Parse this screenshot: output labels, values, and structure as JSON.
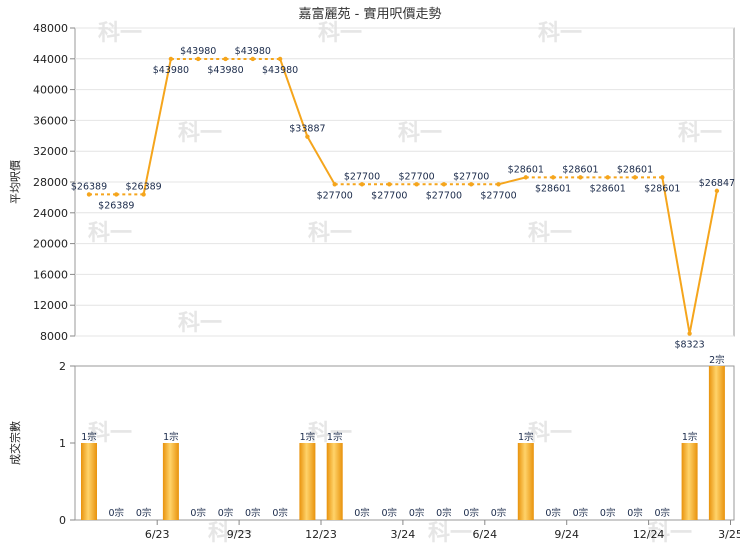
{
  "chart_data": [
    {
      "type": "line",
      "title": "嘉富麗苑 - 實用呎價走勢",
      "ylabel": "平均呎價",
      "ylim": [
        8000,
        48000
      ],
      "yticks": [
        8000,
        12000,
        16000,
        20000,
        24000,
        28000,
        32000,
        36000,
        40000,
        44000,
        48000
      ],
      "x_tick_labels": [
        "6/23",
        "9/23",
        "12/23",
        "3/24",
        "6/24",
        "9/24",
        "12/24",
        "3/25"
      ],
      "x_tick_index": [
        2,
        5,
        8,
        11,
        14,
        17,
        20,
        23
      ],
      "series": [
        {
          "values": [
            26389,
            26389,
            26389,
            43980,
            43980,
            43980,
            43980,
            43980,
            33887,
            27700,
            27700,
            27700,
            27700,
            27700,
            27700,
            27700,
            28601,
            28601,
            28601,
            28601,
            28601,
            28601,
            8323,
            26847
          ],
          "labels": [
            "$26389",
            "$26389",
            "$26389",
            "$43980",
            "$43980",
            "$43980",
            "$43980",
            "$43980",
            "$33887",
            "$27700",
            "$27700",
            "$27700",
            "$27700",
            "$27700",
            "$27700",
            "$27700",
            "$28601",
            "$28601",
            "$28601",
            "$28601",
            "$28601",
            "$28601",
            "$8323",
            "$26847"
          ],
          "color": "#f5a51c"
        }
      ]
    },
    {
      "type": "bar",
      "ylabel": "成交宗數",
      "ylim": [
        0,
        2
      ],
      "yticks": [
        0,
        1,
        2
      ],
      "values": [
        1,
        0,
        0,
        1,
        0,
        0,
        0,
        0,
        1,
        1,
        0,
        0,
        0,
        0,
        0,
        0,
        1,
        0,
        0,
        0,
        0,
        0,
        1,
        2
      ],
      "labels": [
        "1宗",
        "0宗",
        "0宗",
        "1宗",
        "0宗",
        "0宗",
        "0宗",
        "0宗",
        "1宗",
        "1宗",
        "0宗",
        "0宗",
        "0宗",
        "0宗",
        "0宗",
        "0宗",
        "1宗",
        "0宗",
        "0宗",
        "0宗",
        "0宗",
        "0宗",
        "1宗",
        "2宗"
      ],
      "color": "#f5a51c"
    }
  ],
  "watermark": "科一"
}
